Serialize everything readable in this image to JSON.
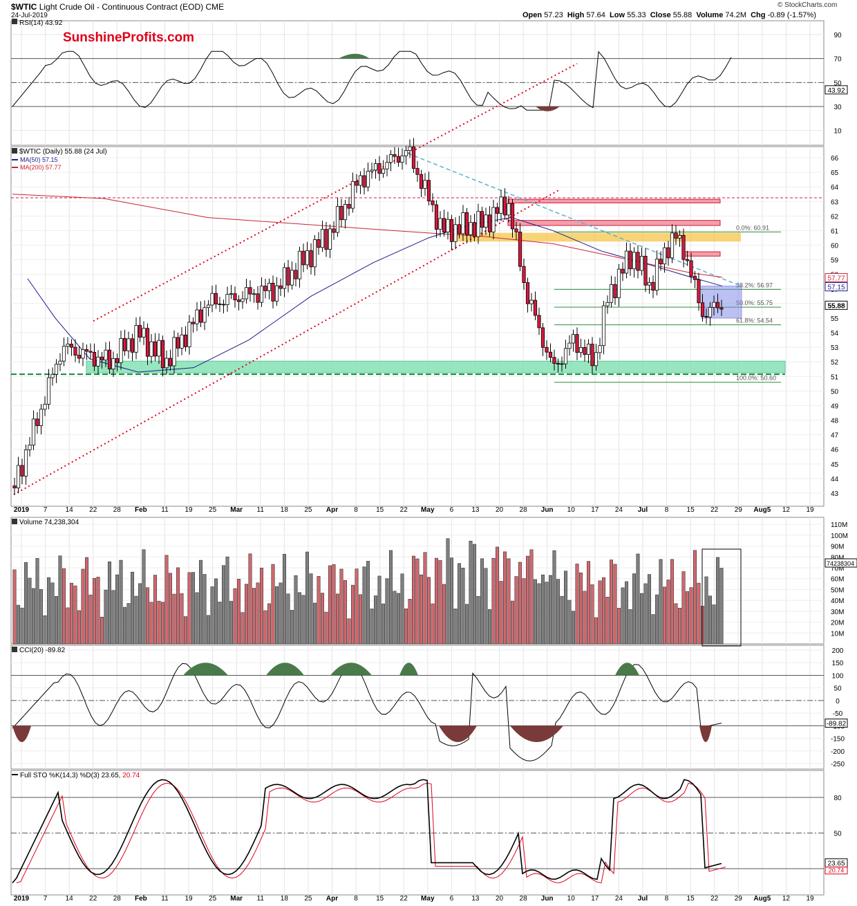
{
  "header": {
    "symbol": "$WTIC",
    "name": "Light Crude Oil - Continuous Contract (EOD)",
    "exchange": "CME",
    "date": "24-Jul-2019",
    "copyright": "© StockCharts.com",
    "ohlc": [
      {
        "label": "Open",
        "value": "57.23"
      },
      {
        "label": "High",
        "value": "57.64"
      },
      {
        "label": "Low",
        "value": "55.33"
      },
      {
        "label": "Close",
        "value": "55.88"
      },
      {
        "label": "Volume",
        "value": "74.2M"
      },
      {
        "label": "Chg",
        "value": "-0.89 (-1.57%)"
      }
    ]
  },
  "brand": "SunshineProfits.com",
  "colors": {
    "up": "#ffffff",
    "down": "#d6193e",
    "ma50": "#1c1c8a",
    "ma200": "#cc2233",
    "fib": "#2e8b3a",
    "support": "#7fe0b0",
    "resistance": "#f5c54a",
    "positive_fill": "#4a7a4a",
    "negative_fill": "#7a3a3a"
  },
  "chart_data": [
    {
      "panel": "rsi",
      "type": "line",
      "legend": "RSI(14) 43.92",
      "last_value": "43.92",
      "ylim": [
        0,
        100
      ],
      "ticks": [
        10,
        30,
        50,
        70,
        90
      ],
      "levels": [
        30,
        50,
        70
      ],
      "shading": "green above 70, red below 30"
    },
    {
      "panel": "price",
      "type": "candlestick",
      "legend": [
        "$WTIC (Daily) 55.88 (24 Jul)",
        "MA(50) 57.15",
        "MA(200) 57.77"
      ],
      "ylim": [
        42.5,
        67
      ],
      "ticks": [
        43,
        44,
        45,
        46,
        47,
        48,
        49,
        50,
        51,
        52,
        53,
        54,
        55,
        56,
        57,
        58,
        59,
        60,
        61,
        62,
        63,
        64,
        65,
        66
      ],
      "last_labels": [
        "57.77",
        "57.15",
        "55.88"
      ],
      "x_labels": [
        "2019",
        "7",
        "14",
        "22",
        "28",
        "Feb",
        "11",
        "19",
        "25",
        "Mar",
        "11",
        "18",
        "25",
        "Apr",
        "8",
        "15",
        "22",
        "May",
        "6",
        "13",
        "20",
        "28",
        "Jun",
        "10",
        "17",
        "24",
        "Jul",
        "8",
        "15",
        "22",
        "29",
        "Aug5",
        "12",
        "19"
      ],
      "fibonacci": [
        {
          "label": "0.0%: 60.91",
          "value": 60.91
        },
        {
          "label": "38.2%: 56.97",
          "value": 56.97
        },
        {
          "label": "50.0%: 55.75",
          "value": 55.75
        },
        {
          "label": "61.8%: 54.54",
          "value": 54.54
        },
        {
          "label": "100.0%: 50.60",
          "value": 50.6
        }
      ],
      "support_zone": [
        51.25,
        52.05
      ],
      "support_line": 51.15,
      "resistance_line": 63.25,
      "resistance_zone": [
        60.25,
        60.85
      ]
    },
    {
      "panel": "volume",
      "type": "bar",
      "legend": "Volume 74,238,304",
      "last_value": "74238304",
      "ticks": [
        "10M",
        "20M",
        "30M",
        "40M",
        "50M",
        "60M",
        "70M",
        "80M",
        "90M",
        "100M",
        "110M"
      ]
    },
    {
      "panel": "cci",
      "type": "line",
      "legend": "CCI(20) -89.82",
      "last_value": "-89.82",
      "ticks": [
        -250,
        -200,
        -150,
        -100,
        -50,
        0,
        50,
        100,
        150,
        200
      ]
    },
    {
      "panel": "stochastic",
      "type": "line",
      "legend_prefix": "Full STO %K(14,3) %D(3)",
      "k_value": "23.65",
      "d_value": "20.74",
      "ticks": [
        20,
        50,
        80
      ],
      "levels": [
        20,
        50,
        80
      ]
    }
  ]
}
